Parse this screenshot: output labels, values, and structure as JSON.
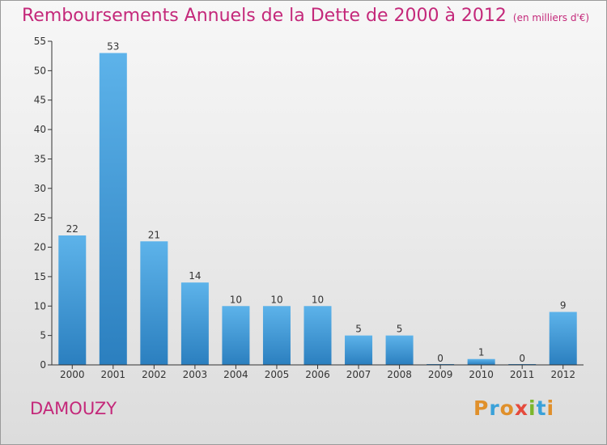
{
  "title": "Remboursements Annuels de la Dette de 2000 à 2012",
  "unit": "(en milliers d'€)",
  "commune": "DAMOUZY",
  "logo": {
    "letters": [
      "P",
      "r",
      "o",
      "x",
      "i",
      "t",
      "i"
    ],
    "colors": [
      "#e0902b",
      "#3aa1d9",
      "#e0902b",
      "#e54a3c",
      "#7bb62c",
      "#3aa1d9",
      "#e0902b"
    ]
  },
  "colors": {
    "title": "#c4287a",
    "bar_top": "#5db3ea",
    "bar_bottom": "#2b7fbf",
    "axis": "#333333"
  },
  "chart_data": {
    "type": "bar",
    "title": "Remboursements Annuels de la Dette de 2000 à 2012",
    "xlabel": "",
    "ylabel": "",
    "categories": [
      "2000",
      "2001",
      "2002",
      "2003",
      "2004",
      "2005",
      "2006",
      "2007",
      "2008",
      "2009",
      "2010",
      "2011",
      "2012"
    ],
    "values": [
      22,
      53,
      21,
      14,
      10,
      10,
      10,
      5,
      5,
      0,
      1,
      0,
      9
    ],
    "ylim": [
      0,
      55
    ],
    "yticks": [
      0,
      5,
      10,
      15,
      20,
      25,
      30,
      35,
      40,
      45,
      50,
      55
    ],
    "grid": false,
    "legend": "none"
  }
}
